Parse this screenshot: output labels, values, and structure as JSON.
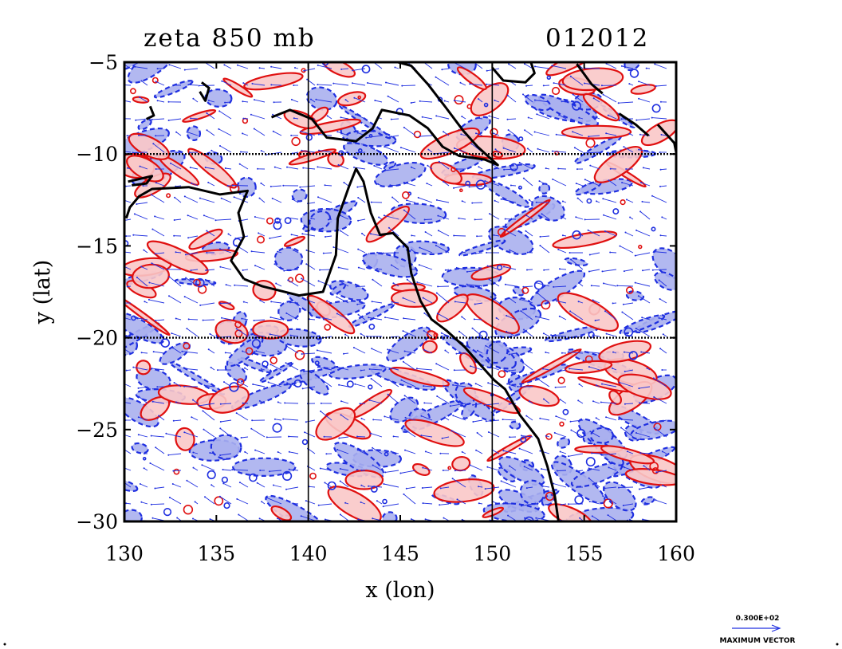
{
  "title_left": "zeta 850 mb",
  "title_right": "012012",
  "xlabel": "x (lon)",
  "ylabel": "y (lat)",
  "xticks": [
    "130",
    "135",
    "140",
    "145",
    "150",
    "155",
    "160"
  ],
  "yticks": [
    "−5",
    "−10",
    "−15",
    "−20",
    "−25",
    "−30"
  ],
  "legend": {
    "value": "0.300E+02",
    "caption": "MAXIMUM VECTOR"
  },
  "colors": {
    "positive_fill": "#f9c8c8",
    "positive_line": "#e01010",
    "negative_fill": "#aab0ee",
    "negative_line": "#1f2fe0",
    "coastline": "#000000",
    "grid": "#000000"
  },
  "map": {
    "lon_range": [
      130,
      160
    ],
    "lat_range": [
      -30,
      -5
    ],
    "grid_lons": [
      140,
      150
    ],
    "grid_lats": [
      -10,
      -20
    ],
    "coastline": [
      [
        [
          136.5,
          -16.8
        ],
        [
          137.5,
          -17.2
        ],
        [
          139.5,
          -17.7
        ],
        [
          140.8,
          -17.5
        ],
        [
          141.5,
          -15.5
        ],
        [
          141.6,
          -13.5
        ],
        [
          142.2,
          -11.8
        ],
        [
          142.6,
          -10.8
        ],
        [
          143.0,
          -11.5
        ],
        [
          143.4,
          -13.2
        ],
        [
          143.9,
          -14.4
        ],
        [
          144.6,
          -14.3
        ],
        [
          145.4,
          -15.1
        ],
        [
          145.6,
          -16.5
        ],
        [
          146.1,
          -18.0
        ],
        [
          146.7,
          -19.0
        ],
        [
          147.5,
          -19.6
        ],
        [
          148.5,
          -20.5
        ],
        [
          149.2,
          -21.3
        ],
        [
          150.1,
          -22.3
        ],
        [
          150.7,
          -22.8
        ],
        [
          151.5,
          -24.2
        ],
        [
          152.5,
          -25.5
        ],
        [
          153.0,
          -27.0
        ],
        [
          153.4,
          -28.6
        ],
        [
          153.6,
          -30.0
        ]
      ],
      [
        [
          136.5,
          -16.8
        ],
        [
          135.8,
          -15.8
        ],
        [
          136.5,
          -14.5
        ],
        [
          136.2,
          -13.2
        ],
        [
          136.7,
          -12.0
        ],
        [
          135.2,
          -12.2
        ],
        [
          133.5,
          -11.8
        ],
        [
          131.5,
          -11.9
        ],
        [
          130.8,
          -12.3
        ],
        [
          130.3,
          -12.9
        ],
        [
          130.1,
          -13.5
        ]
      ],
      [
        [
          130.2,
          -11.5
        ],
        [
          131.5,
          -11.2
        ],
        [
          131.2,
          -11.6
        ],
        [
          130.4,
          -11.7
        ]
      ],
      [
        [
          138.0,
          -8.0
        ],
        [
          139.0,
          -7.6
        ],
        [
          140.2,
          -8.1
        ],
        [
          141.0,
          -9.1
        ],
        [
          142.6,
          -9.3
        ],
        [
          143.5,
          -8.6
        ],
        [
          144.0,
          -7.6
        ],
        [
          145.5,
          -7.9
        ],
        [
          146.5,
          -8.6
        ],
        [
          147.3,
          -9.6
        ],
        [
          148.2,
          -10.1
        ],
        [
          149.6,
          -10.3
        ],
        [
          150.3,
          -10.6
        ],
        [
          149.2,
          -9.6
        ],
        [
          148.4,
          -8.7
        ],
        [
          147.5,
          -7.5
        ],
        [
          146.5,
          -6.2
        ],
        [
          145.6,
          -5.2
        ],
        [
          144.5,
          -4.9
        ]
      ],
      [
        [
          150.0,
          -5.3
        ],
        [
          150.6,
          -6.0
        ],
        [
          151.8,
          -6.1
        ],
        [
          152.3,
          -5.6
        ],
        [
          152.1,
          -5.0
        ]
      ],
      [
        [
          134.2,
          -6.1
        ],
        [
          134.6,
          -6.4
        ],
        [
          134.4,
          -7.1
        ],
        [
          134.1,
          -6.6
        ]
      ],
      [
        [
          131.4,
          -7.4
        ],
        [
          131.6,
          -7.9
        ],
        [
          131.2,
          -8.1
        ]
      ],
      [
        [
          154.6,
          -5.1
        ],
        [
          155.4,
          -6.2
        ],
        [
          156.0,
          -6.7
        ]
      ],
      [
        [
          156.9,
          -7.8
        ],
        [
          157.8,
          -8.4
        ],
        [
          158.5,
          -9.0
        ]
      ],
      [
        [
          159.0,
          -8.4
        ],
        [
          159.9,
          -9.4
        ],
        [
          160.0,
          -9.9
        ]
      ]
    ]
  }
}
